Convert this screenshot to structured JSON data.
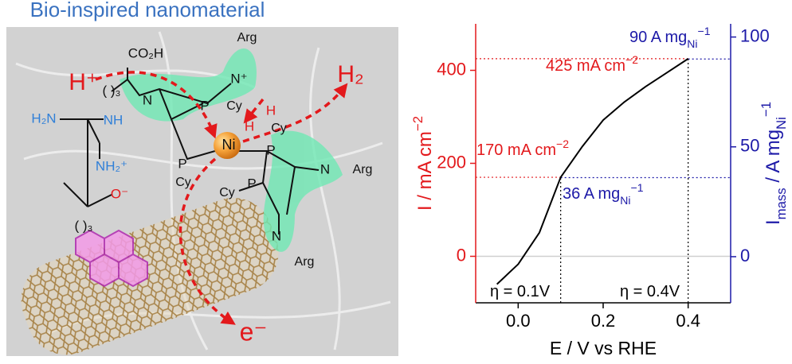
{
  "diagram": {
    "title": "Bio-inspired nanomaterial",
    "labels": [
      "CO₂H",
      "H⁺",
      "( )₃",
      "N",
      "P",
      "Cy",
      "Arg",
      "N⁺",
      "H",
      "H",
      "Ni",
      "P",
      "Cy",
      "Cy",
      "P",
      "P",
      "Cy",
      "N",
      "Arg",
      "N",
      "Arg",
      "H₂N",
      "NH",
      "NH₂⁺",
      "O⁻",
      "( )₃",
      "H₂",
      "e⁻"
    ]
  },
  "chart_data": {
    "type": "line",
    "x": [
      -0.05,
      0,
      0.05,
      0.1,
      0.15,
      0.2,
      0.25,
      0.3,
      0.35,
      0.4
    ],
    "values": [
      -60,
      -17,
      51,
      170,
      235,
      293,
      332,
      365,
      395,
      425
    ],
    "color": "#000000",
    "xlabel": [
      {
        "text": "E / V vs RHE"
      }
    ],
    "ylabel": [
      {
        "text": "I / mA cm"
      },
      {
        "text": "−2",
        "shift": "super"
      }
    ],
    "y2label": [
      {
        "text": "I"
      },
      {
        "text": "mass",
        "shift": "sub"
      },
      {
        "text": " / A mg"
      },
      {
        "text": "Ni",
        "shift": "sub"
      },
      {
        "text": "−1",
        "shift": "super"
      }
    ],
    "xlim": [
      -0.1,
      0.5
    ],
    "xticks": [
      {
        "value": 0,
        "label": "0.0"
      },
      0.2,
      0.4
    ],
    "ylim": [
      -100,
      500
    ],
    "yticks": [
      0,
      200,
      400
    ],
    "y2lim": [
      -21,
      106
    ],
    "y2ticks": [
      0,
      50,
      100
    ],
    "y_color": "#e3191c",
    "y2_color": "#1d1aa8",
    "reference_points": [
      {
        "x": 0.1,
        "y": 170,
        "y2": 36
      },
      {
        "x": 0.4,
        "y": 425,
        "y2": 90
      }
    ],
    "annotations": [
      {
        "parts": [
          {
            "text": "425 mA cm"
          },
          {
            "text": "−2",
            "shift": "super"
          }
        ],
        "color": "#e3191c"
      },
      {
        "parts": [
          {
            "text": "90 A mg"
          },
          {
            "text": "Ni",
            "shift": "sub"
          },
          {
            "text": "−1",
            "shift": "super"
          }
        ],
        "color": "#1d1aa8"
      },
      {
        "parts": [
          {
            "text": "170 mA cm"
          },
          {
            "text": "−2",
            "shift": "super"
          }
        ],
        "color": "#e3191c"
      },
      {
        "parts": [
          {
            "text": "36 A mg"
          },
          {
            "text": "Ni",
            "shift": "sub"
          },
          {
            "text": "−1",
            "shift": "super"
          }
        ],
        "color": "#1d1aa8"
      },
      {
        "parts": [
          {
            "text": "η = 0.1V"
          }
        ],
        "color": "#000000"
      },
      {
        "parts": [
          {
            "text": "η = 0.4V"
          }
        ],
        "color": "#000000"
      }
    ]
  }
}
